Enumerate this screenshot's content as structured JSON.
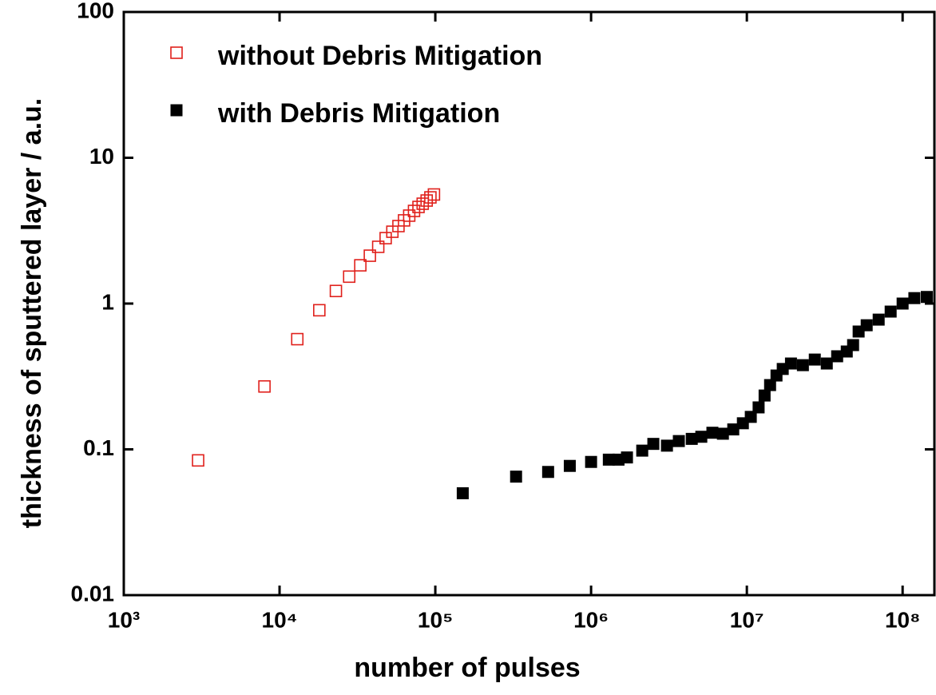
{
  "chart_data": {
    "type": "scatter",
    "xlabel": "number of pulses",
    "ylabel": "thickness of sputtered layer / a.u.",
    "xscale": "log",
    "yscale": "log",
    "xlim": [
      1000,
      160000000
    ],
    "ylim": [
      0.01,
      100
    ],
    "xticks": [
      {
        "value": 1000,
        "label": "10³"
      },
      {
        "value": 10000,
        "label": "10⁴"
      },
      {
        "value": 100000,
        "label": "10⁵"
      },
      {
        "value": 1000000,
        "label": "10⁶"
      },
      {
        "value": 10000000,
        "label": "10⁷"
      },
      {
        "value": 100000000,
        "label": "10⁸"
      }
    ],
    "yticks": [
      0.01,
      0.1,
      1,
      10,
      100
    ],
    "legend": "upper left",
    "series": [
      {
        "name": "without Debris Mitigation",
        "color": "#e0201b",
        "marker": "square-open",
        "x": [
          3000,
          8000,
          13000,
          18000,
          23000,
          28000,
          33000,
          38000,
          43000,
          48000,
          53000,
          58000,
          63000,
          68000,
          73000,
          78000,
          83000,
          88000,
          93000,
          98000
        ],
        "values": [
          0.084,
          0.27,
          0.57,
          0.9,
          1.22,
          1.53,
          1.83,
          2.13,
          2.45,
          2.81,
          3.11,
          3.4,
          3.72,
          4.01,
          4.32,
          4.6,
          4.84,
          5.09,
          5.35,
          5.6
        ]
      },
      {
        "name": "with Debris Mitigation",
        "color": "#000000",
        "marker": "square",
        "x": [
          150000,
          330000,
          530000,
          730000,
          1000000,
          1300000,
          1500000,
          1700000,
          2130000,
          2510000,
          3070000,
          3660000,
          4430000,
          5100000,
          6010000,
          7020000,
          8180000,
          9430000,
          10600000,
          11900000,
          13000000,
          14100000,
          15500000,
          17000000,
          19200000,
          22900000,
          27300000,
          32600000,
          38000000,
          43800000,
          48100000,
          52200000,
          58800000,
          70200000,
          83800000,
          100000000,
          119000000,
          143000000
        ],
        "values": [
          0.05,
          0.065,
          0.07,
          0.077,
          0.082,
          0.085,
          0.085,
          0.088,
          0.098,
          0.109,
          0.106,
          0.114,
          0.118,
          0.122,
          0.13,
          0.128,
          0.137,
          0.151,
          0.167,
          0.194,
          0.234,
          0.276,
          0.321,
          0.356,
          0.388,
          0.378,
          0.413,
          0.388,
          0.435,
          0.469,
          0.519,
          0.643,
          0.71,
          0.776,
          0.881,
          1.0,
          1.09,
          1.11
        ]
      }
    ]
  }
}
